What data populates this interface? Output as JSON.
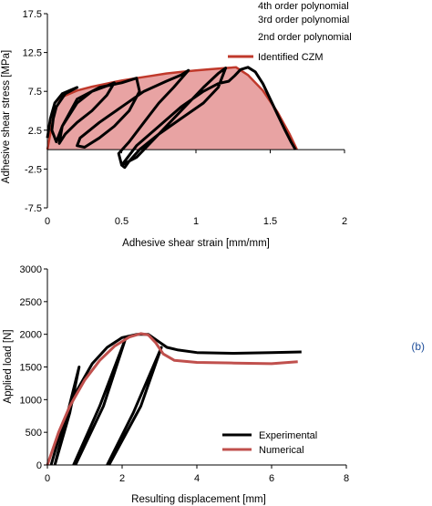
{
  "chart_data": [
    {
      "type": "area",
      "xlabel": "Adhesive shear strain [mm/mm]",
      "ylabel": "Adhesive shear stress [MPa]",
      "xlim": [
        0,
        2
      ],
      "ylim": [
        -7.5,
        17.5
      ],
      "xticks": [
        "0",
        "0.5",
        "1",
        "1.5",
        "2"
      ],
      "yticks": [
        "17.5",
        "12.5",
        "7.5",
        "2.5",
        "-2.5",
        "-7.5"
      ],
      "legend_position": "top-right",
      "legend": [
        "4th order polynomial",
        "3rd order polynomial",
        "2nd order polynomial",
        "Identified CZM"
      ],
      "colors": {
        "experimental": "#000000",
        "czm_line": "#c0392b",
        "czm_fill": "#e8a3a3"
      },
      "series": [
        {
          "name": "Identified CZM",
          "x": [
            0,
            0.05,
            0.1,
            0.2,
            0.3,
            0.4,
            0.5,
            0.6,
            0.7,
            0.8,
            0.9,
            1.0,
            1.1,
            1.2,
            1.27,
            1.35,
            1.45,
            1.55,
            1.63,
            1.68
          ],
          "y": [
            0,
            5.2,
            6.8,
            7.6,
            8.1,
            8.5,
            8.9,
            9.2,
            9.5,
            9.8,
            10.0,
            10.2,
            10.35,
            10.5,
            10.6,
            9.6,
            7.6,
            4.8,
            2.0,
            0
          ]
        },
        {
          "name": "",
          "x": [
            0,
            0.02,
            0.05,
            0.1,
            0.15,
            0.2,
            0.12,
            0.06,
            0.04,
            0.03,
            0.06,
            0.1,
            0.2,
            0.3,
            0.4,
            0.45,
            0.4,
            0.3,
            0.2,
            0.12,
            0.08,
            0.1,
            0.2,
            0.35,
            0.5,
            0.6,
            0.62,
            0.55,
            0.45,
            0.35,
            0.25,
            0.2,
            0.22,
            0.35,
            0.5,
            0.65,
            0.8,
            0.9,
            0.95,
            0.85,
            0.75,
            0.65,
            0.55,
            0.48,
            0.5,
            0.6,
            0.75,
            0.9,
            1.05,
            1.15,
            1.2,
            1.15,
            1.05,
            0.9,
            0.75,
            0.62,
            0.55,
            0.52,
            0.5,
            0.52,
            0.6,
            0.75,
            0.9,
            1.05,
            1.15,
            1.22,
            1.26,
            1.3,
            1.35,
            1.4,
            1.45,
            1.5,
            1.55,
            1.6,
            1.64,
            1.67
          ],
          "y": [
            1.5,
            4.0,
            6.0,
            7.2,
            7.6,
            8.0,
            7.2,
            5.5,
            4.0,
            2.5,
            1.0,
            3.0,
            6.0,
            7.5,
            8.2,
            8.6,
            7.0,
            5.0,
            3.5,
            2.0,
            0.8,
            3.0,
            6.5,
            8.0,
            8.6,
            9.2,
            7.5,
            5.0,
            3.0,
            1.5,
            0.3,
            0.5,
            1.5,
            3.5,
            5.5,
            7.5,
            8.8,
            9.6,
            10.2,
            8.0,
            6.0,
            3.5,
            1.0,
            -0.5,
            -2.0,
            -1.0,
            2.0,
            5.0,
            8.0,
            9.8,
            10.5,
            8.0,
            6.0,
            4.0,
            2.0,
            0.0,
            -1.5,
            -2.3,
            -2.0,
            -1.5,
            0.5,
            3.0,
            5.5,
            7.5,
            8.5,
            8.8,
            9.5,
            10.3,
            10.6,
            10.0,
            8.5,
            6.5,
            4.5,
            2.5,
            1.0,
            0
          ]
        }
      ]
    },
    {
      "type": "line",
      "xlabel": "Resulting displacement [mm]",
      "ylabel": "Applied load [N]",
      "xlim": [
        0,
        8
      ],
      "ylim": [
        0,
        3000
      ],
      "xticks": [
        "0",
        "2",
        "4",
        "6",
        "8"
      ],
      "yticks": [
        "3000",
        "2500",
        "2000",
        "1500",
        "1000",
        "500",
        "0"
      ],
      "legend_position": "bottom-right",
      "panel_label": "(b)",
      "colors": {
        "Experimental": "#000000",
        "Numerical": "#c0504d",
        "panel_label": "#1f4e9a"
      },
      "series": [
        {
          "name": "Experimental",
          "x": [
            0.1,
            0.4,
            0.8,
            1.2,
            1.6,
            2.0,
            2.4,
            2.7,
            3.0,
            3.2,
            3.5,
            4.0,
            5.0,
            6.0,
            6.8
          ],
          "y": [
            0,
            600,
            1150,
            1550,
            1800,
            1950,
            2000,
            2000,
            1880,
            1800,
            1760,
            1720,
            1710,
            1720,
            1730
          ]
        },
        {
          "name": "Numerical",
          "x": [
            0.0,
            0.3,
            0.6,
            1.0,
            1.4,
            1.8,
            2.2,
            2.5,
            2.7,
            2.9,
            3.1,
            3.4,
            4.0,
            5.0,
            6.0,
            6.7
          ],
          "y": [
            0,
            500,
            900,
            1300,
            1600,
            1820,
            1960,
            2010,
            1990,
            1870,
            1700,
            1600,
            1570,
            1560,
            1550,
            1580
          ]
        }
      ],
      "hysteresis_loops": [
        {
          "x": [
            0.2,
            0.6,
            0.85,
            0.5,
            0.2
          ],
          "y": [
            0,
            800,
            1500,
            700,
            0
          ]
        },
        {
          "x": [
            0.7,
            1.4,
            2.1,
            1.5,
            0.75
          ],
          "y": [
            0,
            900,
            1950,
            900,
            0
          ]
        },
        {
          "x": [
            1.6,
            2.3,
            3.05,
            2.5,
            1.65
          ],
          "y": [
            0,
            800,
            1800,
            900,
            0
          ]
        }
      ]
    }
  ]
}
